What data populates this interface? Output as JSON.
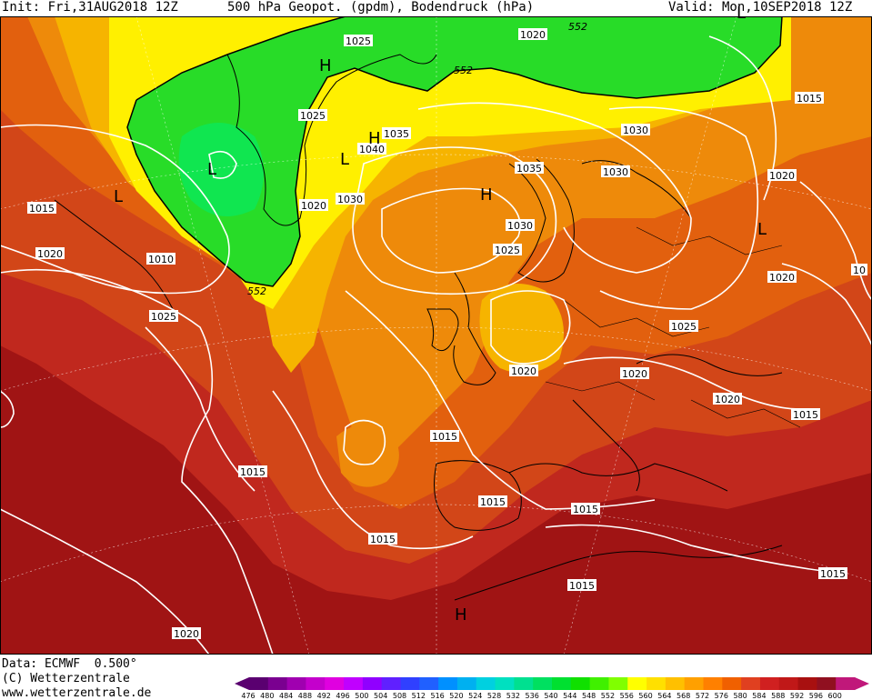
{
  "header": {
    "init": "Init: Fri,31AUG2018 12Z",
    "title": "500 hPa Geopot. (gpdm), Bodendruck (hPa)",
    "valid": "Valid: Mon,10SEP2018 12Z"
  },
  "footer": {
    "data": "Data: ECMWF  0.500°",
    "copyright": "(C) Wetterzentrale",
    "url": "www.wetterzentrale.de"
  },
  "colorbar": {
    "ticks": [
      "476",
      "480",
      "484",
      "488",
      "492",
      "496",
      "500",
      "504",
      "508",
      "512",
      "516",
      "520",
      "524",
      "528",
      "532",
      "536",
      "540",
      "544",
      "548",
      "552",
      "556",
      "560",
      "564",
      "568",
      "572",
      "576",
      "580",
      "584",
      "588",
      "592",
      "596",
      "600"
    ],
    "colors": [
      "#5a0070",
      "#7a0090",
      "#a000b0",
      "#c400cc",
      "#e000e0",
      "#c000ff",
      "#9000ff",
      "#6020ff",
      "#3040ff",
      "#2060ff",
      "#0090ff",
      "#00b0f0",
      "#00d0e0",
      "#00e0c0",
      "#00e090",
      "#00e060",
      "#00e030",
      "#10e000",
      "#40f000",
      "#80ff00",
      "#ffff00",
      "#ffe000",
      "#ffc000",
      "#ffa000",
      "#ff8000",
      "#f06000",
      "#e04020",
      "#d02020",
      "#c01818",
      "#a81010",
      "#901020",
      "#c0187a"
    ]
  },
  "map": {
    "colors": {
      "deep_red": "#a01414",
      "red": "#c0281e",
      "red_orange": "#d24618",
      "orange": "#e2600e",
      "light_orange": "#ee8a0a",
      "gold": "#f6b400",
      "yellow": "#fff000",
      "green": "#28dc28",
      "bright_green": "#10e650",
      "isobar": "#ffffff",
      "contour_552": "#000000"
    },
    "isobar_labels": [
      "1025",
      "1020",
      "552",
      "552",
      "1025",
      "1035",
      "1040",
      "1030",
      "1035",
      "1030",
      "1025",
      "1030",
      "1015",
      "1020",
      "1010",
      "552",
      "1025",
      "1030",
      "1025",
      "1020",
      "1015",
      "1015",
      "1015",
      "1015",
      "1015",
      "1020",
      "1015",
      "1020",
      "1020",
      "1020",
      "1015",
      "1020",
      "1020",
      "1015",
      "1015",
      "10"
    ],
    "pressure_systems": [
      "H",
      "H",
      "L",
      "L",
      "L",
      "L",
      "H",
      "L",
      "H"
    ]
  }
}
